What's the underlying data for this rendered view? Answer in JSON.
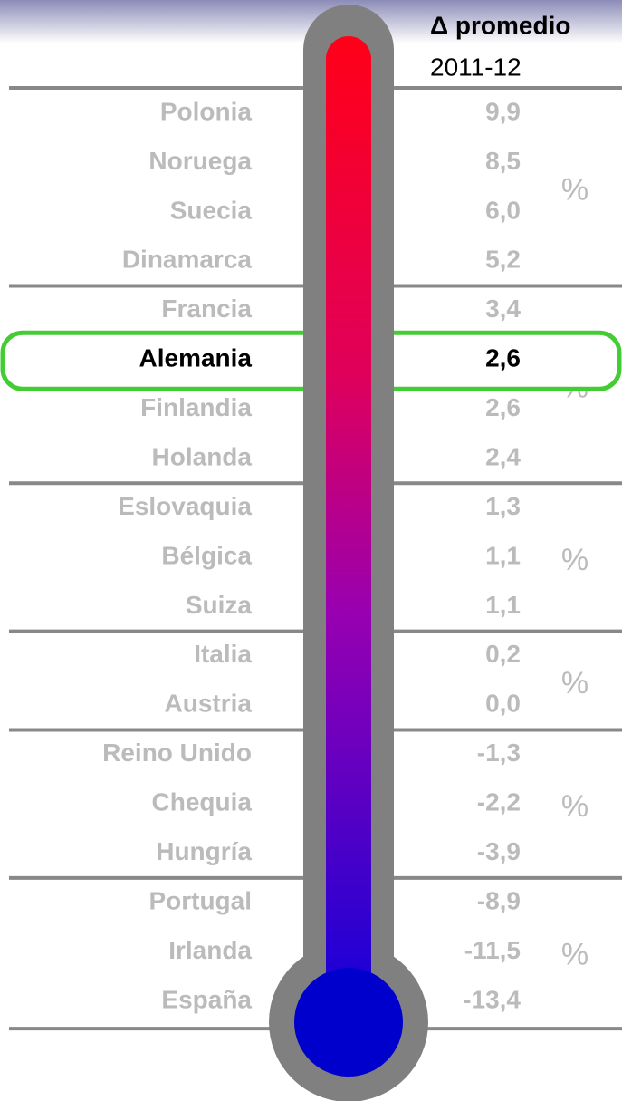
{
  "header": {
    "title": "Δ promedio",
    "subtitle": "2011-12"
  },
  "groups": [
    {
      "unit": "%",
      "rows": [
        {
          "country": "Polonia",
          "value": "9,9"
        },
        {
          "country": "Noruega",
          "value": "8,5"
        },
        {
          "country": "Suecia",
          "value": "6,0"
        },
        {
          "country": "Dinamarca",
          "value": "5,2"
        }
      ]
    },
    {
      "unit": "%",
      "rows": [
        {
          "country": "Francia",
          "value": "3,4"
        },
        {
          "country": "Alemania",
          "value": "2,6",
          "highlighted": true
        },
        {
          "country": "Finlandia",
          "value": "2,6"
        },
        {
          "country": "Holanda",
          "value": "2,4"
        }
      ]
    },
    {
      "unit": "%",
      "rows": [
        {
          "country": "Eslovaquia",
          "value": "1,3"
        },
        {
          "country": "Bélgica",
          "value": "1,1"
        },
        {
          "country": "Suiza",
          "value": "1,1"
        }
      ]
    },
    {
      "unit": "%",
      "rows": [
        {
          "country": "Italia",
          "value": "0,2"
        },
        {
          "country": "Austria",
          "value": "0,0"
        }
      ]
    },
    {
      "unit": "%",
      "rows": [
        {
          "country": "Reino Unido",
          "value": "-1,3"
        },
        {
          "country": "Chequia",
          "value": "-2,2"
        },
        {
          "country": "Hungría",
          "value": "-3,9"
        }
      ]
    },
    {
      "unit": "%",
      "rows": [
        {
          "country": "Portugal",
          "value": "-8,9"
        },
        {
          "country": "Irlanda",
          "value": "-11,5"
        },
        {
          "country": "España",
          "value": "-13,4"
        }
      ]
    }
  ]
}
